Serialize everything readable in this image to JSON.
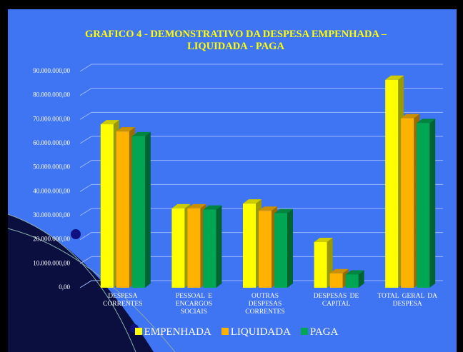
{
  "chart_data": {
    "type": "bar",
    "title": "GRAFICO 4 - DEMONSTRATIVO DA DESPESA EMPENHADA – LIQUIDADA - PAGA",
    "categories": [
      "DESPESA CORRENTES",
      "PESSOAL E ENCARGOS SOCIAIS",
      "OUTRAS DESPESAS CORRENTES",
      "DESPESAS DE CAPITAL",
      "TOTAL GERAL DA DESPESA"
    ],
    "series": [
      {
        "name": "EMPENHADA",
        "color": "#ffff00",
        "values": [
          68000000,
          33000000,
          35000000,
          19000000,
          86500000
        ]
      },
      {
        "name": "LIQUIDADA",
        "color": "#ffb300",
        "values": [
          65000000,
          33000000,
          32000000,
          6000000,
          70500000
        ]
      },
      {
        "name": "PAGA",
        "color": "#00a651",
        "values": [
          63000000,
          32500000,
          31000000,
          5500000,
          68500000
        ]
      }
    ],
    "ylim": [
      0,
      90000000
    ],
    "yticks": [
      {
        "value": 0,
        "label": "0,00"
      },
      {
        "value": 10000000,
        "label": "10.000.000,00"
      },
      {
        "value": 20000000,
        "label": "20.000.000,00"
      },
      {
        "value": 30000000,
        "label": "30.000.000,00"
      },
      {
        "value": 40000000,
        "label": "40.000.000,00"
      },
      {
        "value": 50000000,
        "label": "50.000.000,00"
      },
      {
        "value": 60000000,
        "label": "60.000.000,00"
      },
      {
        "value": 70000000,
        "label": "70.000.000,00"
      },
      {
        "value": 80000000,
        "label": "80.000.000,00"
      },
      {
        "value": 90000000,
        "label": "90.000.000,00"
      }
    ],
    "grid": true
  }
}
